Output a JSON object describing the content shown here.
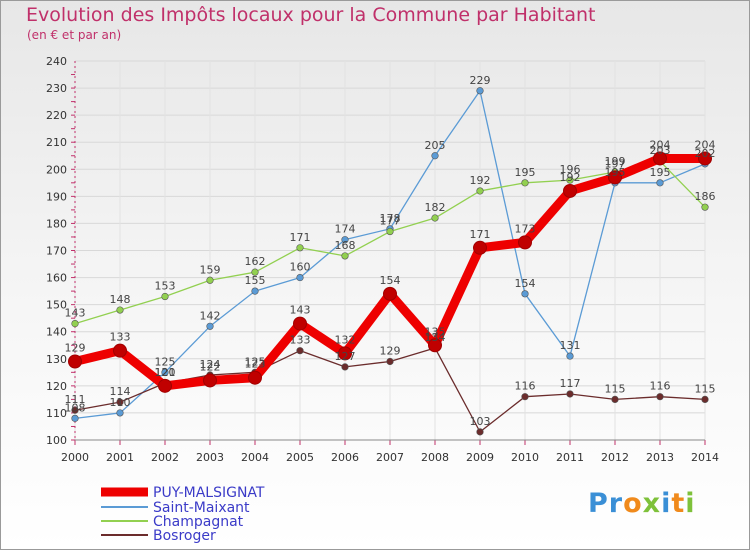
{
  "header": {
    "title": "Evolution des Impôts locaux pour la Commune par Habitant",
    "subtitle": "(en € et par an)"
  },
  "logo": {
    "text": "Proxiti"
  },
  "chart_data": {
    "type": "line",
    "title": "Evolution des Impôts locaux pour la Commune par Habitant",
    "subtitle": "(en € et par an)",
    "xlabel": "",
    "ylabel": "",
    "x": [
      "2000",
      "2001",
      "2002",
      "2003",
      "2004",
      "2005",
      "2006",
      "2007",
      "2008",
      "2009",
      "2010",
      "2011",
      "2012",
      "2013",
      "2014"
    ],
    "ylim": [
      100,
      240
    ],
    "yticks": [
      100,
      110,
      120,
      130,
      140,
      150,
      160,
      170,
      180,
      190,
      200,
      210,
      220,
      230,
      240
    ],
    "grid": true,
    "legend_position": "bottom-left",
    "series": [
      {
        "name": "PUY-MALSIGNAT",
        "color": "#ee0000",
        "values": [
          129,
          133,
          120,
          122,
          123,
          143,
          132,
          154,
          135,
          171,
          173,
          192,
          197,
          204,
          204
        ]
      },
      {
        "name": "Saint-Maixant",
        "color": "#5b9bd5",
        "values": [
          108,
          110,
          125,
          142,
          155,
          160,
          174,
          178,
          205,
          229,
          154,
          131,
          195,
          195,
          202
        ]
      },
      {
        "name": "Champagnat",
        "color": "#92d050",
        "values": [
          143,
          148,
          153,
          159,
          162,
          171,
          168,
          177,
          182,
          192,
          195,
          196,
          199,
          203,
          186
        ]
      },
      {
        "name": "Bosroger",
        "color": "#6b2c2c",
        "values": [
          111,
          114,
          121,
          124,
          125,
          133,
          127,
          129,
          134,
          103,
          116,
          117,
          115,
          116,
          115
        ]
      }
    ]
  }
}
